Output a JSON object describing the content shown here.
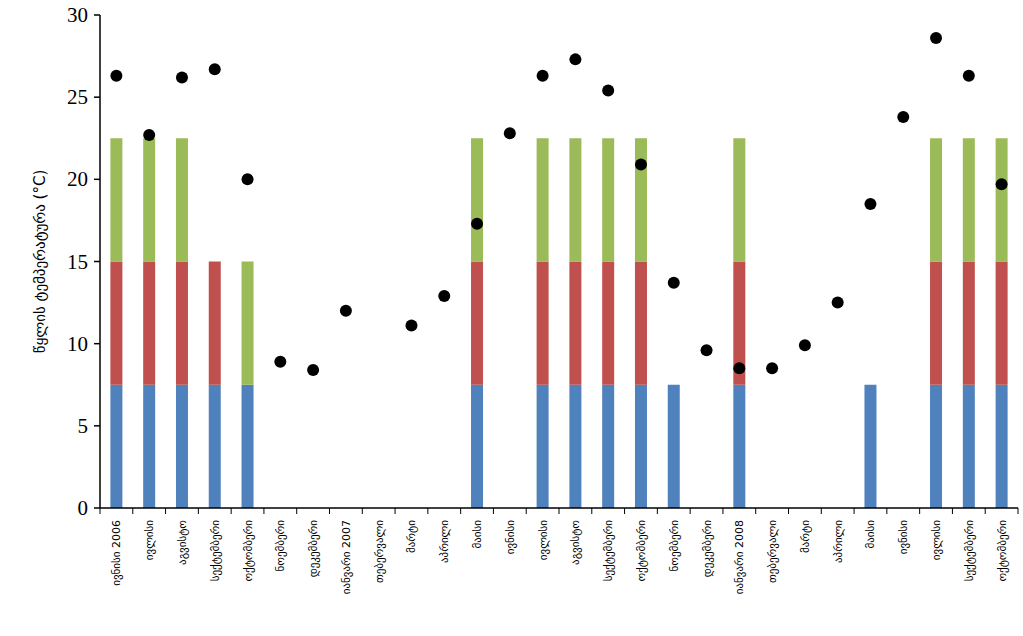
{
  "chart_data": {
    "type": "bar",
    "stacked": true,
    "grid": false,
    "y_label": "წყლის ტემპერატურა (°C)",
    "ylim": [
      0,
      30
    ],
    "yticks": [
      0,
      5,
      10,
      15,
      20,
      25,
      30
    ],
    "categories": [
      "ივნისი 2006",
      "ივლისი",
      "აგვისტო",
      "სექტემბერი",
      "ოქტომბერი",
      "ნოემბერი",
      "დეკემბერი",
      "იანვარი 2007",
      "თებერვალი",
      "მარტი",
      "აპრილი",
      "მაისი",
      "ივნისი",
      "ივლისი",
      "აგვისტო",
      "სექტემბერი",
      "ოქტომბერი",
      "ნოემბერი",
      "დეკემბერი",
      "იანვარი 2008",
      "თებერვალი",
      "მარტი",
      "აპრილი",
      "მაისი",
      "ივნისი",
      "ივლისი",
      "სექტემბერი",
      "ოქტომბერი"
    ],
    "series": [
      {
        "type": "bar",
        "color": "#4f81bd",
        "values": [
          7.5,
          7.5,
          7.5,
          7.5,
          7.5,
          null,
          null,
          null,
          null,
          null,
          null,
          7.5,
          null,
          7.5,
          7.5,
          7.5,
          7.5,
          7.5,
          null,
          7.5,
          null,
          null,
          null,
          7.5,
          null,
          7.5,
          7.5,
          7.5
        ]
      },
      {
        "type": "bar",
        "color": "#c0504d",
        "values": [
          7.5,
          7.5,
          7.5,
          7.5,
          null,
          null,
          null,
          null,
          null,
          null,
          null,
          7.5,
          null,
          7.5,
          7.5,
          7.5,
          7.5,
          null,
          null,
          7.5,
          null,
          null,
          null,
          null,
          null,
          7.5,
          7.5,
          7.5
        ]
      },
      {
        "type": "bar",
        "color": "#9bbb59",
        "values": [
          7.5,
          7.5,
          7.5,
          null,
          7.5,
          null,
          null,
          null,
          null,
          null,
          null,
          7.5,
          null,
          7.5,
          7.5,
          7.5,
          7.5,
          null,
          null,
          7.5,
          null,
          null,
          null,
          null,
          null,
          7.5,
          7.5,
          7.5
        ]
      },
      {
        "type": "scatter",
        "color": "#000000",
        "marker": "circle",
        "values": [
          26.3,
          22.7,
          26.2,
          26.7,
          20.0,
          8.9,
          8.4,
          12.0,
          null,
          11.1,
          12.9,
          17.3,
          22.8,
          26.3,
          27.3,
          25.4,
          20.9,
          13.7,
          9.6,
          8.5,
          8.5,
          9.9,
          12.5,
          18.5,
          23.8,
          28.6,
          26.3,
          19.7
        ]
      }
    ]
  }
}
